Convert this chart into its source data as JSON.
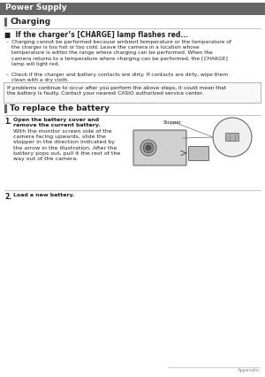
{
  "page_bg": "#ffffff",
  "header_bg": "#666666",
  "header_text": "Power Supply",
  "header_text_color": "#ffffff",
  "header_fontsize": 6.5,
  "section1_title": "Charging",
  "section1_title_fontsize": 6.5,
  "section_bar_color": "#666666",
  "subsection1_title": "■  If the charger’s [CHARGE] lamp flashes red...",
  "subsection1_fontsize": 5.5,
  "bullet1a": "Charging cannot be performed because ambient temperature or the temperature of\nthe charger is too hot or too cold. Leave the camera in a location whose\ntemperature is within the range where charging can be performed. When the\ncamera returns to a temperature where charging can be performed, the [CHARGE]\nlamp will light red.",
  "bullet1b": "Check if the charger and battery contacts are dirty. If contacts are dirty, wipe them\nclean with a dry cloth.",
  "bullet_fontsize": 4.2,
  "note_text": "If problems continue to occur after you perform the above steps, it could mean that\nthe battery is faulty. Contact your nearest CASIO authorized service center.",
  "note_fontsize": 4.2,
  "section2_title": "To replace the battery",
  "section2_title_fontsize": 6.5,
  "step1_bold": "Open the battery cover and\nremove the current battery.",
  "step1_normal": "With the monitor screen side of the\ncamera facing upwards, slide the\nstopper in the direction indicated by\nthe arrow in the illustration. After the\nbattery pops out, pull it the rest of the\nway out of the camera.",
  "step2_bold": "Load a new battery.",
  "step_fontsize": 4.5,
  "stopper_label": "Stopper",
  "footer_text": "Appendix",
  "footer_fontsize": 3.8,
  "text_color": "#222222",
  "line_color": "#aaaaaa",
  "bullet_char": "–"
}
